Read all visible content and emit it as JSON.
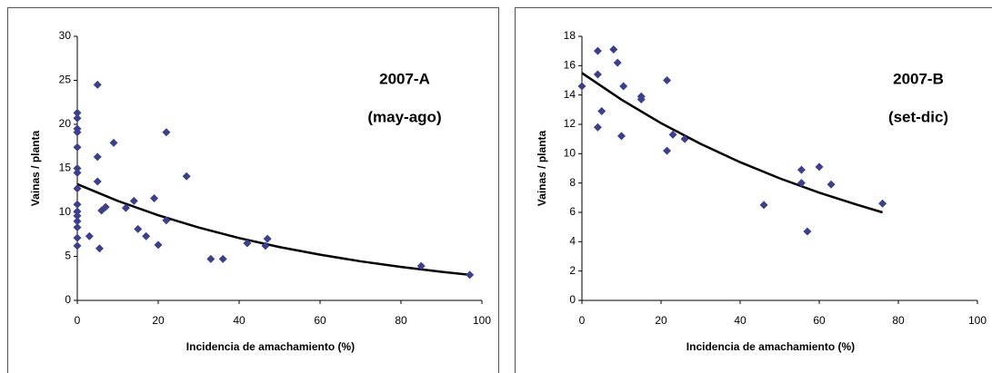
{
  "chart_data": [
    {
      "type": "scatter",
      "ylabel": "Vainas / planta",
      "xlabel": "Incidencia de amachamiento (%)",
      "annotations": [
        "2007-A",
        "(may-ago)"
      ],
      "xlim": [
        0,
        100
      ],
      "ylim": [
        0,
        30
      ],
      "xticks": [
        0,
        20,
        40,
        60,
        80,
        100
      ],
      "yticks": [
        0,
        5,
        10,
        15,
        20,
        25,
        30
      ],
      "color": "#3a3f8f",
      "x": [
        0,
        0,
        0,
        0,
        0,
        0,
        0,
        0,
        0,
        0,
        0,
        0,
        0,
        0,
        0,
        3,
        5,
        5,
        5,
        5.5,
        6,
        7,
        9,
        12,
        14,
        15,
        17,
        19,
        20,
        22,
        22,
        27,
        33,
        36,
        42,
        46.5,
        47,
        85,
        97
      ],
      "y": [
        21.3,
        20.7,
        19.5,
        19.1,
        17.4,
        15,
        14.5,
        12.7,
        10.9,
        10.1,
        9.6,
        9,
        8.3,
        7.1,
        6.2,
        7.3,
        24.5,
        16.3,
        13.5,
        5.9,
        10.2,
        10.6,
        17.9,
        10.5,
        11.3,
        8.1,
        7.3,
        11.6,
        6.3,
        19.1,
        9.1,
        14.1,
        4.7,
        4.7,
        6.5,
        6.2,
        7,
        3.9,
        2.9
      ],
      "trend": {
        "color": "#000000",
        "x": [
          0,
          10,
          20,
          30,
          40,
          50,
          60,
          70,
          80,
          90,
          97
        ],
        "y": [
          13.2,
          11.3,
          9.67,
          8.28,
          7.08,
          6.06,
          5.19,
          4.44,
          3.8,
          3.25,
          2.9
        ]
      }
    },
    {
      "type": "scatter",
      "ylabel": "Vainas / planta",
      "xlabel": "Incidencia de amachamiento (%)",
      "annotations": [
        "2007-B",
        "(set-dic)"
      ],
      "xlim": [
        0,
        100
      ],
      "ylim": [
        0,
        18
      ],
      "xticks": [
        0,
        20,
        40,
        60,
        80,
        100
      ],
      "yticks": [
        0,
        2,
        4,
        6,
        8,
        10,
        12,
        14,
        16,
        18
      ],
      "color": "#3a3f8f",
      "x": [
        0,
        4,
        4,
        4,
        5,
        8,
        9,
        10,
        10.5,
        15,
        15,
        21.5,
        21.5,
        23,
        26,
        46,
        55.5,
        55.5,
        57,
        60,
        63,
        76
      ],
      "y": [
        14.6,
        17,
        15.4,
        11.8,
        12.9,
        17.1,
        16.2,
        11.2,
        14.6,
        13.9,
        13.7,
        15,
        10.2,
        11.3,
        11,
        6.5,
        8.9,
        8,
        4.7,
        9.1,
        7.9,
        6.6
      ],
      "trend": {
        "color": "#000000",
        "x": [
          0,
          10,
          20,
          30,
          40,
          50,
          60,
          70,
          76
        ],
        "y": [
          15.5,
          13.68,
          12.08,
          10.67,
          9.42,
          8.32,
          7.34,
          6.48,
          6
        ]
      }
    }
  ]
}
